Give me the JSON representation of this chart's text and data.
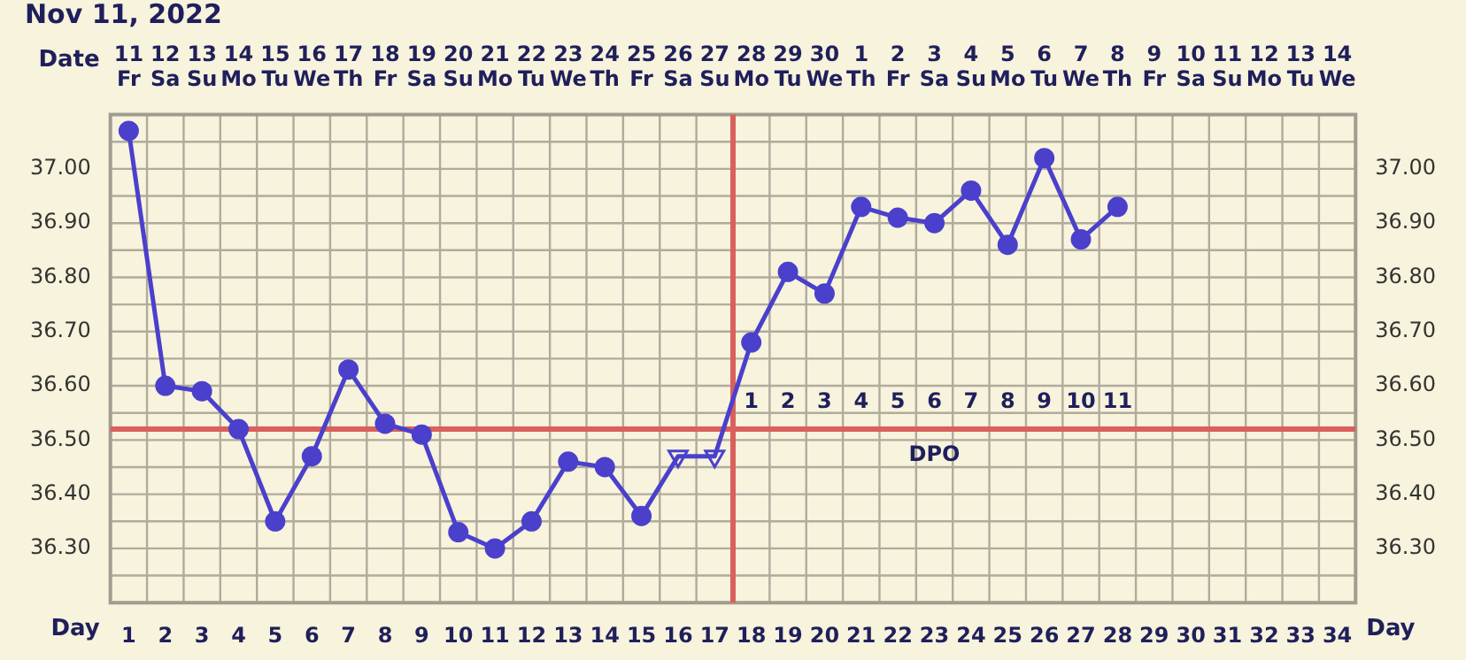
{
  "chart_data": {
    "type": "line",
    "title": "Nov 11, 2022",
    "xlabel": "Day",
    "x2label": "Date",
    "x": [
      1,
      2,
      3,
      4,
      5,
      6,
      7,
      8,
      9,
      10,
      11,
      12,
      13,
      14,
      15,
      16,
      17,
      18,
      19,
      20,
      21,
      22,
      23,
      24,
      25,
      26,
      27,
      28
    ],
    "series": [
      {
        "color": "#4a40cc",
        "marker": "none",
        "values": [
          37.07,
          36.6,
          36.59,
          36.52,
          36.35,
          36.47,
          36.63,
          36.53,
          36.51,
          36.33,
          36.3,
          36.35,
          36.46,
          36.45,
          36.36,
          36.47,
          36.47,
          36.68,
          36.81,
          36.77,
          36.93,
          36.91,
          36.9,
          36.96,
          36.86,
          37.02,
          36.87,
          36.93
        ]
      },
      {
        "type": "scatter",
        "color": "#4a40cc",
        "marker": "circle",
        "x": [
          1,
          2,
          3,
          4,
          5,
          6,
          7,
          8,
          9,
          10,
          11,
          12,
          13,
          14,
          15,
          18,
          19,
          20,
          21,
          22,
          23,
          24,
          25,
          26,
          27,
          28
        ],
        "values": [
          37.07,
          36.6,
          36.59,
          36.52,
          36.35,
          36.47,
          36.63,
          36.53,
          36.51,
          36.33,
          36.3,
          36.35,
          36.46,
          36.45,
          36.36,
          36.68,
          36.81,
          36.77,
          36.93,
          36.91,
          36.9,
          36.96,
          36.86,
          37.02,
          36.87,
          36.93
        ]
      },
      {
        "type": "scatter",
        "color": "#4a40cc",
        "marker": "triangle",
        "x": [
          16,
          17
        ],
        "values": [
          36.47,
          36.47
        ]
      }
    ],
    "xlim": [
      0.5,
      34.5
    ],
    "xticks": [
      1,
      2,
      3,
      4,
      5,
      6,
      7,
      8,
      9,
      10,
      11,
      12,
      13,
      14,
      15,
      16,
      17,
      18,
      19,
      20,
      21,
      22,
      23,
      24,
      25,
      26,
      27,
      28,
      29,
      30,
      31,
      32,
      33,
      34
    ],
    "x2lim": [
      "2022-11-10T12:00",
      "2022-12-14T12:00"
    ],
    "x2ticks": [
      {
        "value": "2022-11-11",
        "label": "11\nFr"
      },
      {
        "value": "2022-11-12",
        "label": "12\nSa"
      },
      {
        "value": "2022-11-13",
        "label": "13\nSu"
      },
      {
        "value": "2022-11-14",
        "label": "14\nMo"
      },
      {
        "value": "2022-11-15",
        "label": "15\nTu"
      },
      {
        "value": "2022-11-16",
        "label": "16\nWe"
      },
      {
        "value": "2022-11-17",
        "label": "17\nTh"
      },
      {
        "value": "2022-11-18",
        "label": "18\nFr"
      },
      {
        "value": "2022-11-19",
        "label": "19\nSa"
      },
      {
        "value": "2022-11-20",
        "label": "20\nSu"
      },
      {
        "value": "2022-11-21",
        "label": "21\nMo"
      },
      {
        "value": "2022-11-22",
        "label": "22\nTu"
      },
      {
        "value": "2022-11-23",
        "label": "23\nWe"
      },
      {
        "value": "2022-11-24",
        "label": "24\nTh"
      },
      {
        "value": "2022-11-25",
        "label": "25\nFr"
      },
      {
        "value": "2022-11-26",
        "label": "26\nSa"
      },
      {
        "value": "2022-11-27",
        "label": "27\nSu"
      },
      {
        "value": "2022-11-28",
        "label": "28\nMo"
      },
      {
        "value": "2022-11-29",
        "label": "29\nTu"
      },
      {
        "value": "2022-11-30",
        "label": "30\nWe"
      },
      {
        "value": "2022-12-01",
        "label": "1\nTh"
      },
      {
        "value": "2022-12-02",
        "label": "2\nFr"
      },
      {
        "value": "2022-12-03",
        "label": "3\nSa"
      },
      {
        "value": "2022-12-04",
        "label": "4\nSu"
      },
      {
        "value": "2022-12-05",
        "label": "5\nMo"
      },
      {
        "value": "2022-12-06",
        "label": "6\nTu"
      },
      {
        "value": "2022-12-07",
        "label": "7\nWe"
      },
      {
        "value": "2022-12-08",
        "label": "8\nTh"
      },
      {
        "value": "2022-12-09",
        "label": "9\nFr"
      },
      {
        "value": "2022-12-10",
        "label": "10\nSa"
      },
      {
        "value": "2022-12-11",
        "label": "11\nSu"
      },
      {
        "value": "2022-12-12",
        "label": "12\nMo"
      },
      {
        "value": "2022-12-13",
        "label": "13\nTu"
      },
      {
        "value": "2022-12-14",
        "label": "14\nWe"
      }
    ],
    "ylim": [
      36.2,
      37.1
    ],
    "yticks": [
      {
        "value": 36.25,
        "label": null
      },
      {
        "value": 36.3,
        "label": "36.30"
      },
      {
        "value": 36.35,
        "label": null
      },
      {
        "value": 36.4,
        "label": "36.40"
      },
      {
        "value": 36.45,
        "label": null
      },
      {
        "value": 36.5,
        "label": "36.50"
      },
      {
        "value": 36.55,
        "label": null
      },
      {
        "value": 36.6,
        "label": "36.60"
      },
      {
        "value": 36.65,
        "label": null
      },
      {
        "value": 36.7,
        "label": "36.70"
      },
      {
        "value": 36.75,
        "label": null
      },
      {
        "value": 36.8,
        "label": "36.80"
      },
      {
        "value": 36.85,
        "label": null
      },
      {
        "value": 36.9,
        "label": "36.90"
      },
      {
        "value": 36.95,
        "label": null
      },
      {
        "value": 37.0,
        "label": "37.00"
      },
      {
        "value": 37.05,
        "label": null
      }
    ],
    "y2lim": [
      36.2,
      37.1
    ],
    "y2ticks": [
      {
        "value": 36.25,
        "label": null
      },
      {
        "value": 36.3,
        "label": "36.30"
      },
      {
        "value": 36.35,
        "label": null
      },
      {
        "value": 36.4,
        "label": "36.40"
      },
      {
        "value": 36.45,
        "label": null
      },
      {
        "value": 36.5,
        "label": "36.50"
      },
      {
        "value": 36.55,
        "label": null
      },
      {
        "value": 36.6,
        "label": "36.60"
      },
      {
        "value": 36.65,
        "label": null
      },
      {
        "value": 36.7,
        "label": "36.70"
      },
      {
        "value": 36.75,
        "label": null
      },
      {
        "value": 36.8,
        "label": "36.80"
      },
      {
        "value": 36.85,
        "label": null
      },
      {
        "value": 36.9,
        "label": "36.90"
      },
      {
        "value": 36.95,
        "label": null
      },
      {
        "value": 37.0,
        "label": "37.00"
      },
      {
        "value": 37.05,
        "label": null
      }
    ],
    "ref_lines": [
      {
        "axis": "y",
        "value": 36.52,
        "color": "#d9605c"
      },
      {
        "axis": "x",
        "value": 17.5,
        "color": "#d9605c"
      }
    ],
    "annotations": [
      "1",
      "2",
      "3",
      "4",
      "5",
      "6",
      "7",
      "8",
      "9",
      "10",
      "11",
      "DPO"
    ],
    "grid": true,
    "legend": false
  }
}
